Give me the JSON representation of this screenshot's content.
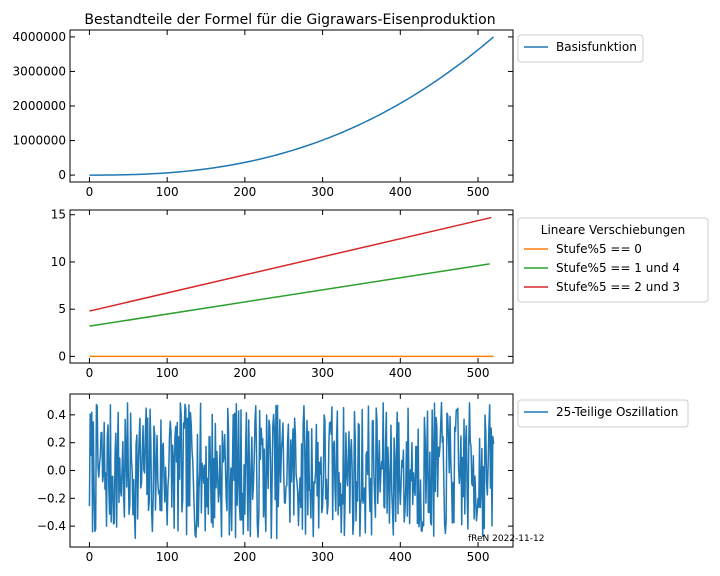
{
  "title": "Bestandteile der Formel für die Gigrawars-Eisenproduktion",
  "watermark": "fReN 2022-11-12",
  "colors": {
    "blue": "#1f77b4",
    "orange": "#ff7f0e",
    "green": "#2ca02c",
    "red": "#d62728"
  },
  "chart_data": [
    {
      "type": "line",
      "xlim": [
        -25,
        545
      ],
      "ylim": [
        -200000,
        4200000
      ],
      "xticks": [
        0,
        100,
        200,
        300,
        400,
        500
      ],
      "yticks": [
        0,
        1000000,
        2000000,
        3000000,
        4000000
      ],
      "xtick_labels": [
        "0",
        "100",
        "200",
        "300",
        "400",
        "500"
      ],
      "ytick_labels": [
        "0",
        "1000000",
        "2000000",
        "3000000",
        "4000000"
      ],
      "legend_position": "outside-right-top",
      "legend_title": "",
      "series": [
        {
          "name": "Basisfunktion",
          "color": "#1f77b4",
          "kind": "power",
          "x_start": 0,
          "x_end": 520,
          "base": 0,
          "amplitude": 4000000,
          "exponent": 2.5
        }
      ]
    },
    {
      "type": "line",
      "xlim": [
        -25,
        545
      ],
      "ylim": [
        -0.7,
        15.5
      ],
      "xticks": [
        0,
        100,
        200,
        300,
        400,
        500
      ],
      "yticks": [
        0,
        5,
        10,
        15
      ],
      "xtick_labels": [
        "0",
        "100",
        "200",
        "300",
        "400",
        "500"
      ],
      "ytick_labels": [
        "0",
        "5",
        "10",
        "15"
      ],
      "legend_position": "outside-right-top",
      "legend_title": "Lineare Verschiebungen",
      "series": [
        {
          "name": "Stufe%5 == 0",
          "color": "#ff7f0e",
          "kind": "linear",
          "x": [
            0,
            520
          ],
          "y": [
            0,
            0
          ]
        },
        {
          "name": "Stufe%5 == 1 und 4",
          "color": "#2ca02c",
          "kind": "linear",
          "x": [
            0,
            515
          ],
          "y": [
            3.2,
            9.8
          ]
        },
        {
          "name": "Stufe%5 == 2 und 3",
          "color": "#d62728",
          "kind": "linear",
          "x": [
            0,
            517
          ],
          "y": [
            4.8,
            14.7
          ]
        }
      ]
    },
    {
      "type": "line",
      "xlim": [
        -25,
        545
      ],
      "ylim": [
        -0.55,
        0.55
      ],
      "xticks": [
        0,
        100,
        200,
        300,
        400,
        500
      ],
      "yticks": [
        -0.4,
        -0.2,
        0.0,
        0.2,
        0.4
      ],
      "xtick_labels": [
        "0",
        "100",
        "200",
        "300",
        "400",
        "500"
      ],
      "ytick_labels": [
        "−0.4",
        "−0.2",
        "0.0",
        "0.2",
        "0.4"
      ],
      "legend_position": "outside-right-top",
      "legend_title": "",
      "series": [
        {
          "name": "25-Teilige Oszillation",
          "color": "#1f77b4",
          "kind": "oscillation",
          "x_start": 0,
          "x_end": 520,
          "amplitude": 0.5,
          "seed": 7
        }
      ]
    }
  ]
}
